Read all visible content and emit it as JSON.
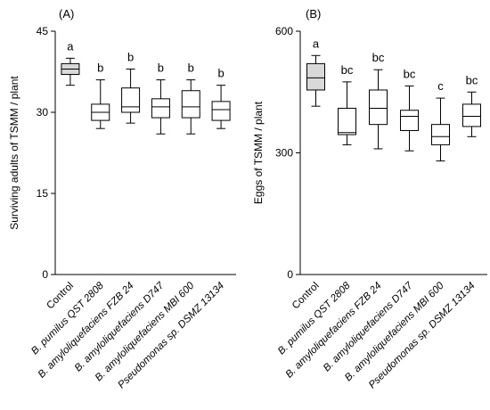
{
  "chart_data": [
    {
      "type": "box",
      "panel_label": "(A)",
      "ylabel": "Surviving adults of TSMM / plant",
      "ylim": [
        0,
        45
      ],
      "yticks": [
        "0",
        "15",
        "30",
        "45"
      ],
      "categories": [
        "Control",
        "B. pumilus QST 2808",
        "B. amyloliquefaciens FZB 24",
        "B. amyloliquefaciens D747",
        "B. amyloliquefaciens MBI 600",
        "Pseudomonas sp. DSMZ 13134"
      ],
      "category_italic": [
        false,
        true,
        true,
        true,
        true,
        true
      ],
      "boxes": [
        {
          "min": 35,
          "q1": 37,
          "median": 38,
          "q3": 39,
          "max": 40
        },
        {
          "min": 27,
          "q1": 28.5,
          "median": 30,
          "q3": 31.5,
          "max": 36
        },
        {
          "min": 28,
          "q1": 30,
          "median": 31,
          "q3": 34.5,
          "max": 38
        },
        {
          "min": 26,
          "q1": 29,
          "median": 31,
          "q3": 32.5,
          "max": 36
        },
        {
          "min": 26,
          "q1": 29,
          "median": 31,
          "q3": 34,
          "max": 36
        },
        {
          "min": 27,
          "q1": 28.5,
          "median": 30.5,
          "q3": 32,
          "max": 35
        }
      ],
      "letters": [
        "a",
        "b",
        "b",
        "b",
        "b",
        "b"
      ],
      "box_fill": [
        "#d9d9d9",
        "#ffffff",
        "#ffffff",
        "#ffffff",
        "#ffffff",
        "#ffffff"
      ],
      "grid": false
    },
    {
      "type": "box",
      "panel_label": "(B)",
      "ylabel": "Eggs of TSMM / plant",
      "ylim": [
        0,
        600
      ],
      "yticks": [
        "0",
        "300",
        "600"
      ],
      "categories": [
        "Control",
        "B. pumilus QST 2808",
        "B. amyloliquefaciens FZB 24",
        "B. amyloliquefaciens D747",
        "B. amyloliquefaciens MBI 600",
        "Pseudomonas sp. DSMZ 13134"
      ],
      "category_italic": [
        false,
        true,
        true,
        true,
        true,
        true
      ],
      "boxes": [
        {
          "min": 415,
          "q1": 455,
          "median": 485,
          "q3": 520,
          "max": 540
        },
        {
          "min": 320,
          "q1": 345,
          "median": 350,
          "q3": 410,
          "max": 475
        },
        {
          "min": 310,
          "q1": 370,
          "median": 410,
          "q3": 455,
          "max": 505
        },
        {
          "min": 305,
          "q1": 355,
          "median": 390,
          "q3": 405,
          "max": 465
        },
        {
          "min": 280,
          "q1": 320,
          "median": 340,
          "q3": 370,
          "max": 435
        },
        {
          "min": 340,
          "q1": 365,
          "median": 390,
          "q3": 420,
          "max": 450
        }
      ],
      "letters": [
        "a",
        "bc",
        "bc",
        "bc",
        "c",
        "bc"
      ],
      "box_fill": [
        "#d9d9d9",
        "#ffffff",
        "#ffffff",
        "#ffffff",
        "#ffffff",
        "#ffffff"
      ],
      "grid": false
    }
  ]
}
